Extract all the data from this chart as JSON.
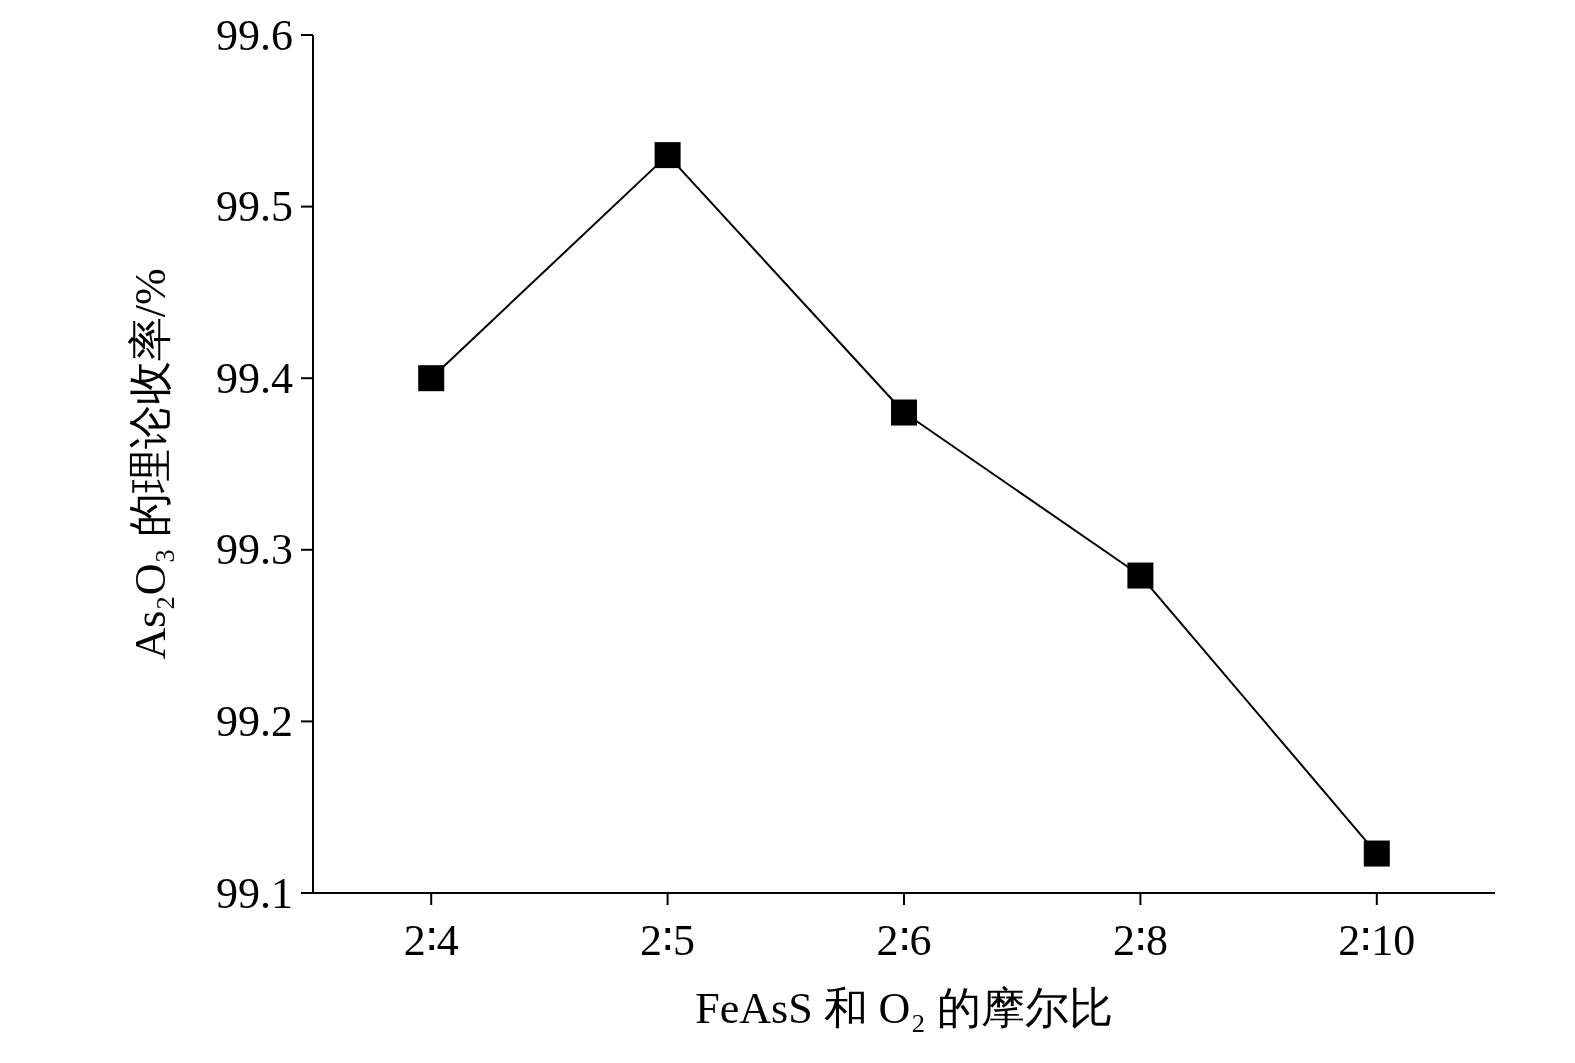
{
  "chart_data": {
    "type": "line",
    "xlabel": "FeAsS 和 O₂ 的摩尔比",
    "ylabel": "As₂O₃ 的理论收率/%",
    "categories": [
      "2∶4",
      "2∶5",
      "2∶6",
      "2∶8",
      "2∶10"
    ],
    "series": [
      {
        "color": "#000000",
        "values": [
          99.4,
          99.53,
          99.38,
          99.285,
          99.123
        ]
      }
    ],
    "ylim": [
      99.1,
      99.6
    ],
    "yticks": [
      99.1,
      99.2,
      99.3,
      99.4,
      99.5,
      99.6
    ],
    "marker": "square",
    "line_style": "solid"
  }
}
